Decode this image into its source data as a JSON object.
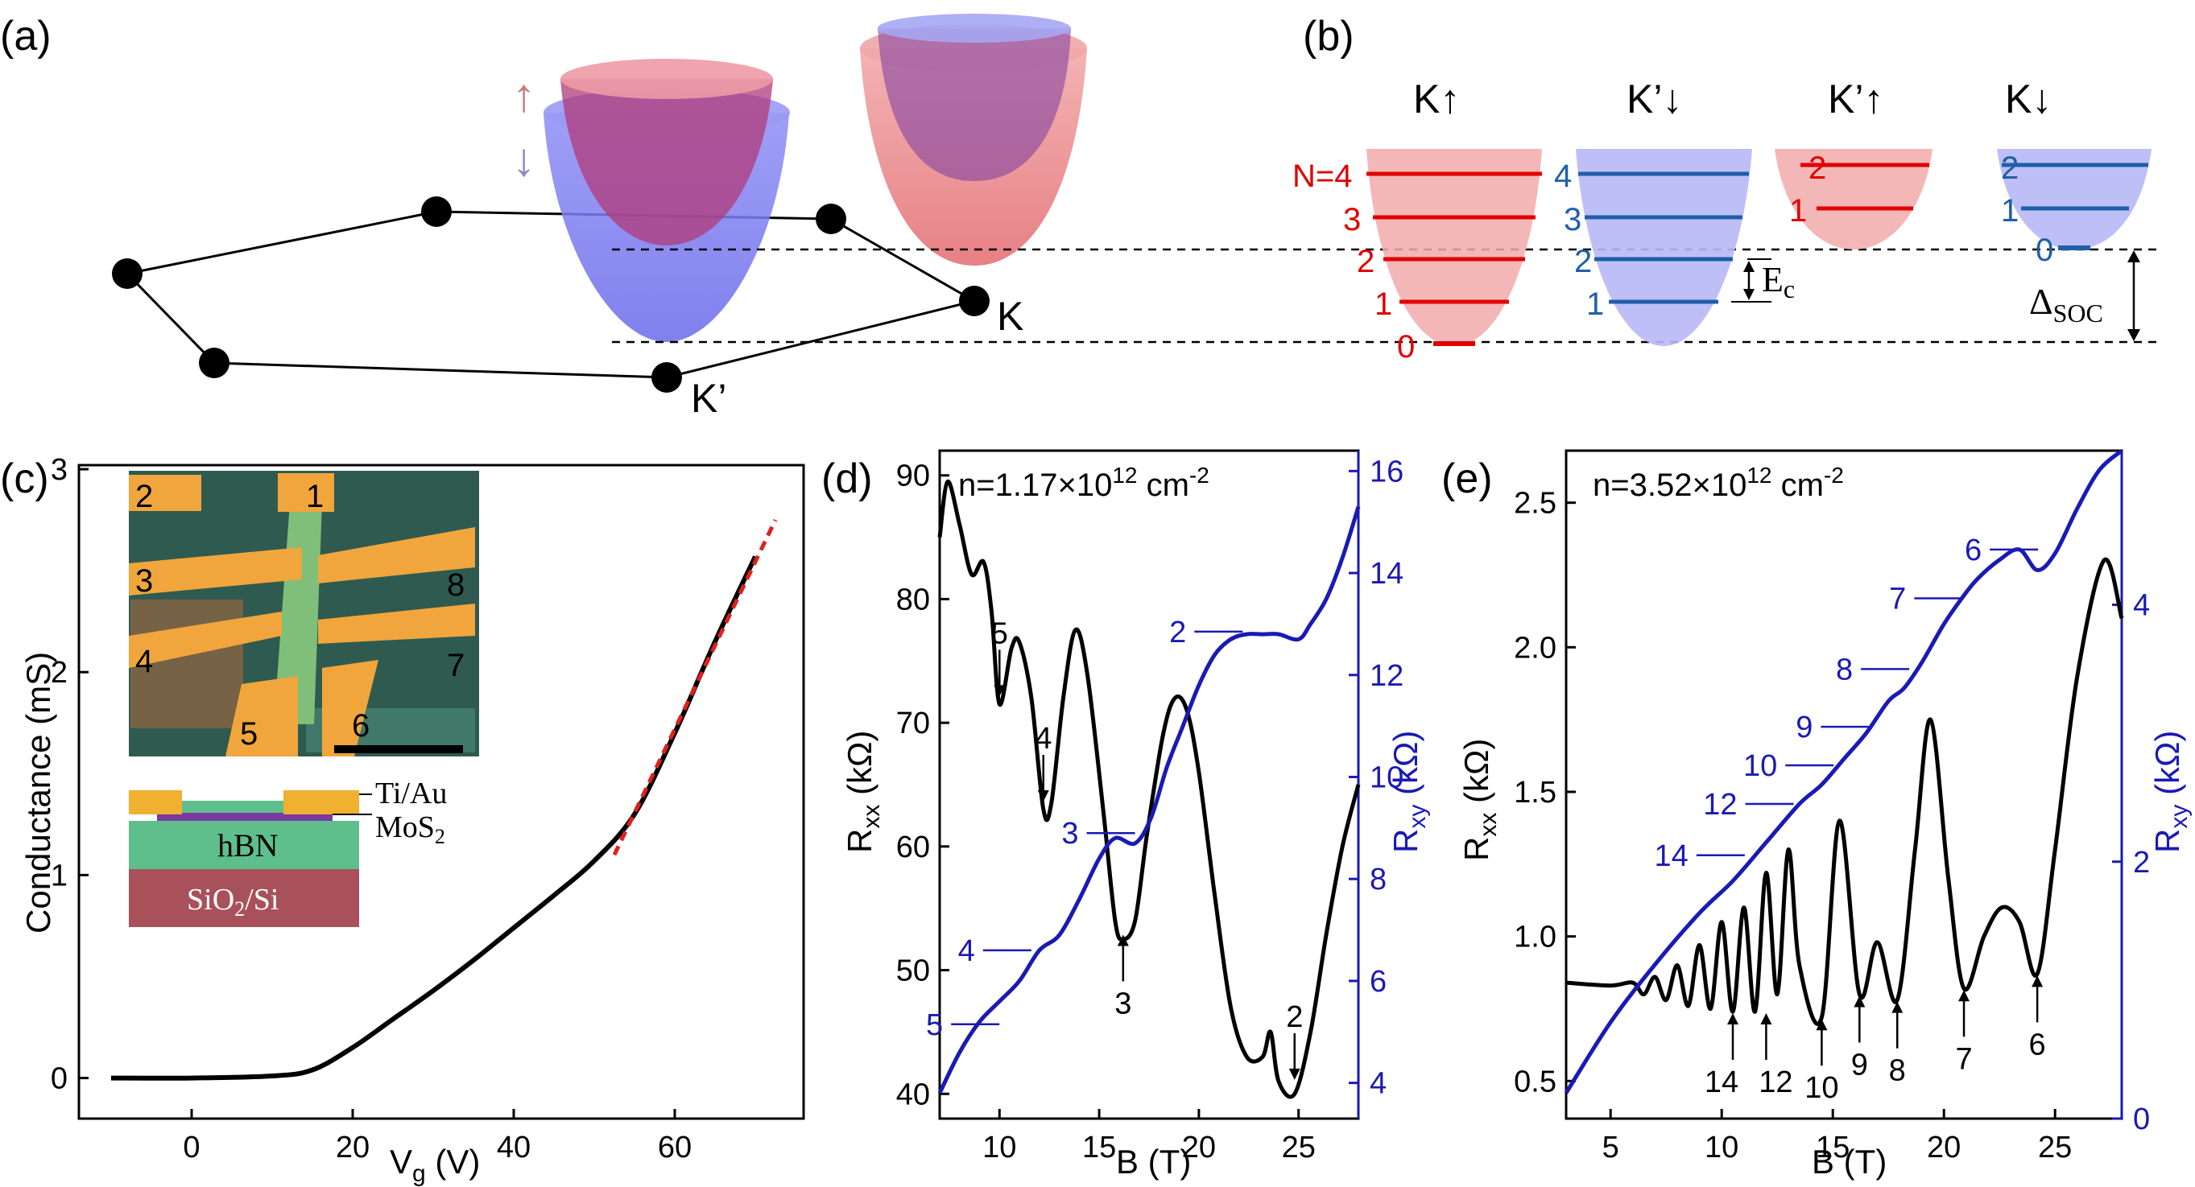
{
  "panels": {
    "a": {
      "label": "(a)",
      "valley_K": "K",
      "valley_Kp": "K’",
      "spin_up_arrow": "↑",
      "spin_down_arrow": "↓",
      "colors": {
        "spin_up": "#e8868a",
        "spin_down": "#7f7ff0"
      }
    },
    "b": {
      "label": "(b)",
      "columns": [
        {
          "title": "K↑",
          "levels": [
            "N=4",
            "3",
            "2",
            "1",
            "0"
          ],
          "color": "#e00000"
        },
        {
          "title": "K’↓",
          "levels": [
            "4",
            "3",
            "2",
            "1"
          ],
          "color": "#1f5fa8"
        },
        {
          "title": "K’↑",
          "levels": [
            "2",
            "1"
          ],
          "color": "#e00000"
        },
        {
          "title": "K↓",
          "levels": [
            "2",
            "1",
            "0"
          ],
          "color": "#1f5fa8"
        }
      ],
      "ec_label": "E",
      "ec_sub": "c",
      "soc_label": "Δ",
      "soc_sub": "SOC"
    },
    "c": {
      "label": "(c)",
      "chart_data": {
        "type": "line",
        "title": "",
        "xlabel": "V",
        "xlabel_sub": "g",
        "xlabel_unit": " (V)",
        "ylabel": "Conductance (mS)",
        "x_ticks": [
          "0",
          "20",
          "40",
          "60"
        ],
        "y_ticks": [
          "0",
          "1",
          "2",
          "3"
        ],
        "xlim": [
          -14,
          76
        ],
        "ylim": [
          -0.2,
          3.02
        ],
        "series": [
          {
            "name": "conductance",
            "color": "#000000",
            "x": [
              -10,
              0,
              10,
              15,
              20,
              25,
              30,
              35,
              40,
              45,
              50,
              55,
              60,
              65,
              70
            ],
            "y": [
              0,
              0,
              0.01,
              0.04,
              0.15,
              0.29,
              0.43,
              0.58,
              0.74,
              0.9,
              1.07,
              1.3,
              1.7,
              2.15,
              2.57
            ]
          },
          {
            "name": "linear fit",
            "color": "#e0201e",
            "style": "dashed",
            "x": [
              52.5,
              72.5
            ],
            "y": [
              1.1,
              2.75
            ]
          }
        ]
      },
      "inset": {
        "contacts": [
          "2",
          "1",
          "3",
          "8",
          "4",
          "7",
          "5",
          "6"
        ],
        "stack_labels": [
          "Ti/Au",
          "MoS",
          "hBN",
          "SiO",
          "/Si"
        ],
        "subscript_2": "2"
      }
    },
    "d": {
      "label": "(d)",
      "chart_data": {
        "type": "line",
        "density_text": "n=1.17×10",
        "density_exp": "12",
        "density_unit": " cm",
        "density_unit_exp": "-2",
        "xlabel": "B (T)",
        "ylabel_left": "R",
        "ylabel_left_sub": "xx",
        "ylabel_left_unit": " (kΩ)",
        "ylabel_right": "R",
        "ylabel_right_sub": "xy",
        "ylabel_right_unit": " (kΩ)",
        "x_ticks": [
          "10",
          "15",
          "20",
          "25"
        ],
        "y_left_ticks": [
          "40",
          "50",
          "60",
          "70",
          "80",
          "90"
        ],
        "y_right_ticks": [
          "4",
          "6",
          "8",
          "10",
          "12",
          "14",
          "16"
        ],
        "xlim": [
          7,
          28
        ],
        "ylim_left": [
          38,
          92
        ],
        "ylim_right": [
          3.3,
          16.4
        ],
        "series": [
          {
            "name": "Rxx",
            "color": "#000000",
            "axis": "left",
            "x": [
              7,
              7.4,
              8,
              8.6,
              9.2,
              9.6,
              10.0,
              10.6,
              11.0,
              11.6,
              12.2,
              12.6,
              13.2,
              13.8,
              14.4,
              15.2,
              15.8,
              16.2,
              16.8,
              17.4,
              18.2,
              18.8,
              19.4,
              20.0,
              20.8,
              21.6,
              22.4,
              23.2,
              23.6,
              24.0,
              24.8,
              25.6,
              26.4,
              27.2,
              28
            ],
            "y": [
              85,
              89.5,
              86,
              82,
              83,
              79,
              71.5,
              76,
              76.5,
              72,
              63,
              63.5,
              72,
              77.5,
              74,
              63,
              54,
              52.5,
              54,
              61,
              69,
              72,
              71,
              66,
              56,
              47,
              43,
              43,
              45,
              41,
              40,
              45,
              53,
              60,
              65
            ]
          },
          {
            "name": "Rxy",
            "color": "#1a1ab4",
            "axis": "right",
            "x": [
              7,
              8,
              9,
              10,
              11,
              12,
              13,
              14,
              15,
              15.8,
              16.8,
              17.6,
              18.4,
              19.2,
              20,
              20.8,
              21.6,
              22.4,
              23.2,
              24,
              25,
              25.6,
              26.4,
              27.2,
              28
            ],
            "y": [
              3.8,
              4.6,
              5.2,
              5.6,
              6.0,
              6.6,
              6.9,
              7.6,
              8.4,
              8.8,
              8.7,
              9.2,
              10.2,
              11.0,
              11.8,
              12.4,
              12.7,
              12.8,
              12.8,
              12.8,
              12.7,
              13.0,
              13.5,
              14.3,
              15.3
            ]
          }
        ],
        "rxx_arrows": [
          "5",
          "4",
          "3",
          "2"
        ],
        "rxy_plateaus": [
          "2",
          "3",
          "4",
          "5"
        ]
      }
    },
    "e": {
      "label": "(e)",
      "chart_data": {
        "type": "line",
        "density_text": "n=3.52×10",
        "density_exp": "12",
        "density_unit": " cm",
        "density_unit_exp": "-2",
        "xlabel": "B (T)",
        "ylabel_left": "R",
        "ylabel_left_sub": "xx",
        "ylabel_left_unit": " (kΩ)",
        "ylabel_right": "R",
        "ylabel_right_sub": "xy",
        "ylabel_right_unit": " (kΩ)",
        "x_ticks": [
          "5",
          "10",
          "15",
          "20",
          "25"
        ],
        "y_left_ticks": [
          "0.5",
          "1.0",
          "1.5",
          "2.0",
          "2.5"
        ],
        "y_right_ticks": [
          "0",
          "2",
          "4"
        ],
        "xlim": [
          3,
          28
        ],
        "ylim_left": [
          0.37,
          2.68
        ],
        "ylim_right": [
          0,
          5.2
        ],
        "series": [
          {
            "name": "Rxx",
            "color": "#000000",
            "axis": "left",
            "x": [
              3,
              5,
              6,
              6.5,
              7,
              7.5,
              8,
              8.5,
              9,
              9.5,
              10,
              10.5,
              11,
              11.5,
              12,
              12.5,
              13,
              13.5,
              14.5,
              15.3,
              16.2,
              17,
              17.9,
              18.7,
              19.4,
              20.2,
              20.9,
              21.8,
              22.6,
              23.4,
              24.2,
              25,
              26,
              27.2,
              28
            ],
            "y": [
              0.84,
              0.83,
              0.84,
              0.8,
              0.86,
              0.78,
              0.9,
              0.76,
              0.97,
              0.75,
              1.05,
              0.74,
              1.1,
              0.74,
              1.22,
              0.8,
              1.3,
              0.9,
              0.72,
              1.4,
              0.8,
              0.98,
              0.78,
              1.3,
              1.75,
              1.2,
              0.82,
              1.0,
              1.1,
              1.05,
              0.87,
              1.3,
              1.9,
              2.3,
              2.1
            ]
          },
          {
            "name": "Rxy",
            "color": "#1a1ab4",
            "axis": "right",
            "x": [
              3,
              5,
              7,
              9,
              10.5,
              12,
              13.5,
              14.5,
              15.5,
              16.5,
              17.5,
              18.2,
              19,
              20,
              20.8,
              21.5,
              22.5,
              23.4,
              24.2,
              25,
              26,
              27,
              28
            ],
            "y": [
              0.2,
              0.75,
              1.2,
              1.6,
              1.85,
              2.15,
              2.45,
              2.6,
              2.8,
              3.0,
              3.25,
              3.35,
              3.55,
              3.85,
              4.05,
              4.2,
              4.35,
              4.43,
              4.27,
              4.4,
              4.75,
              5.05,
              5.2
            ]
          }
        ],
        "rxx_arrows": [
          "14",
          "12",
          "10",
          "9",
          "8",
          "7",
          "6"
        ],
        "rxy_plateaus": [
          "6",
          "7",
          "8",
          "9",
          "10",
          "12",
          "14"
        ]
      }
    }
  }
}
